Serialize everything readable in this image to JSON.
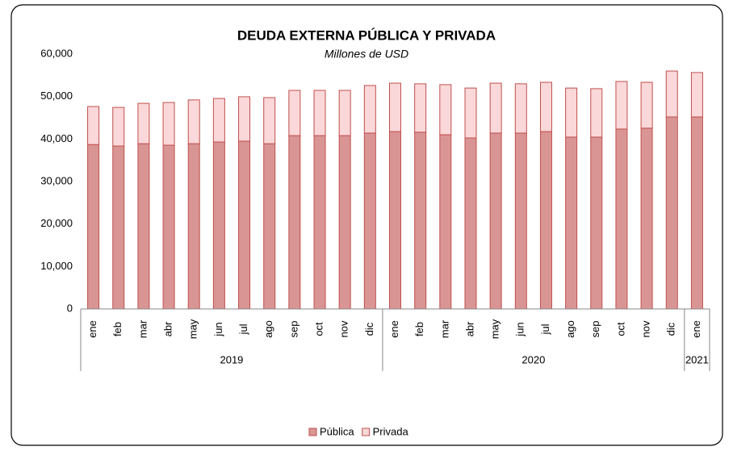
{
  "chart_data": {
    "type": "stacked_bar",
    "title": "DEUDA EXTERNA PÚBLICA Y PRIVADA",
    "subtitle": "Millones de USD",
    "groups": [
      {
        "label": "2019",
        "categories": [
          "ene",
          "feb",
          "mar",
          "abr",
          "may",
          "jun",
          "jul",
          "ago",
          "sep",
          "oct",
          "nov",
          "dic"
        ]
      },
      {
        "label": "2020",
        "categories": [
          "ene",
          "feb",
          "mar",
          "abr",
          "may",
          "jun",
          "jul",
          "ago",
          "sep",
          "oct",
          "nov",
          "dic"
        ]
      },
      {
        "label": "2021",
        "categories": [
          "ene"
        ]
      }
    ],
    "series": [
      {
        "name": "Pública",
        "color": "#d99594",
        "stroke": "#c0504d",
        "values": [
          38700,
          38350,
          38900,
          38550,
          38900,
          39300,
          39500,
          38900,
          40800,
          40800,
          40800,
          41400,
          41750,
          41600,
          41000,
          40250,
          41400,
          41400,
          41750,
          40450,
          40450,
          42350,
          42550,
          45200,
          45200
        ]
      },
      {
        "name": "Privada",
        "color": "#fad7d9",
        "stroke": "#c0504d",
        "values": [
          8950,
          9100,
          9500,
          10050,
          10300,
          10250,
          10450,
          10850,
          10650,
          10650,
          10650,
          11200,
          11400,
          11400,
          11800,
          11750,
          11750,
          11600,
          11600,
          11550,
          11400,
          11200,
          10800,
          10800,
          10450
        ]
      }
    ],
    "ylim": [
      0,
      60000
    ],
    "yticks": [
      0,
      {
        "value": 10000,
        "label": "10,000"
      },
      {
        "value": 20000,
        "label": "20,000"
      },
      {
        "value": 30000,
        "label": "30,000"
      },
      {
        "value": 40000,
        "label": "40,000"
      },
      {
        "value": 50000,
        "label": "50,000"
      },
      {
        "value": 60000,
        "label": "60,000"
      }
    ],
    "grid": false,
    "legend": "bottom"
  }
}
